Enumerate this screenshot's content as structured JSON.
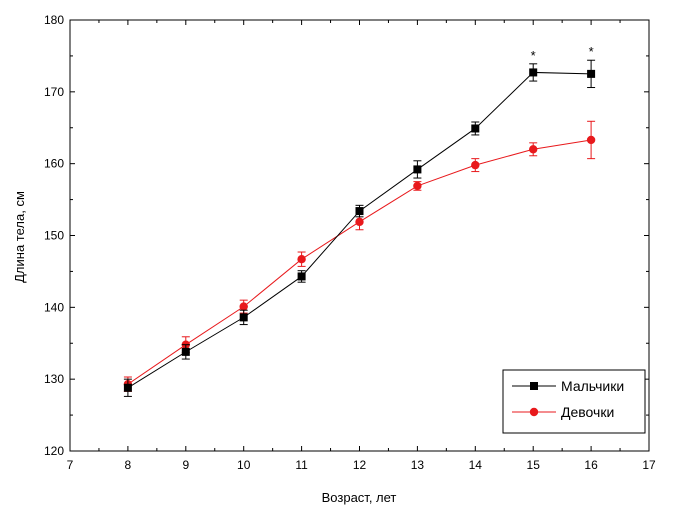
{
  "chart_data": {
    "type": "line",
    "title": "",
    "xlabel": "Возраст, лет",
    "ylabel": "Длина тела, см",
    "xlim": [
      7,
      17
    ],
    "ylim": [
      120,
      180
    ],
    "xticks": [
      7,
      8,
      9,
      10,
      11,
      12,
      13,
      14,
      15,
      16,
      17
    ],
    "yticks": [
      120,
      130,
      140,
      150,
      160,
      170,
      180
    ],
    "x": [
      8,
      9,
      10,
      11,
      12,
      13,
      14,
      15,
      16
    ],
    "legend_position": "bottom-right",
    "grid": false,
    "series": [
      {
        "name": "Мальчики",
        "color": "#000000",
        "marker": "square",
        "values": [
          128.8,
          133.8,
          138.6,
          144.3,
          153.4,
          159.2,
          164.9,
          172.7,
          172.5
        ],
        "errors": [
          1.2,
          1.0,
          1.0,
          0.8,
          0.8,
          1.2,
          0.9,
          1.2,
          1.9
        ],
        "significance": [
          "",
          "",
          "",
          "",
          "",
          "",
          "",
          "*",
          "*"
        ]
      },
      {
        "name": "Девочки",
        "color": "#e8191c",
        "marker": "circle",
        "values": [
          129.3,
          134.8,
          140.1,
          146.7,
          151.9,
          156.9,
          159.8,
          162.0,
          163.3
        ],
        "errors": [
          1.0,
          1.1,
          0.9,
          1.0,
          1.1,
          0.6,
          0.9,
          0.9,
          2.6
        ]
      }
    ]
  }
}
